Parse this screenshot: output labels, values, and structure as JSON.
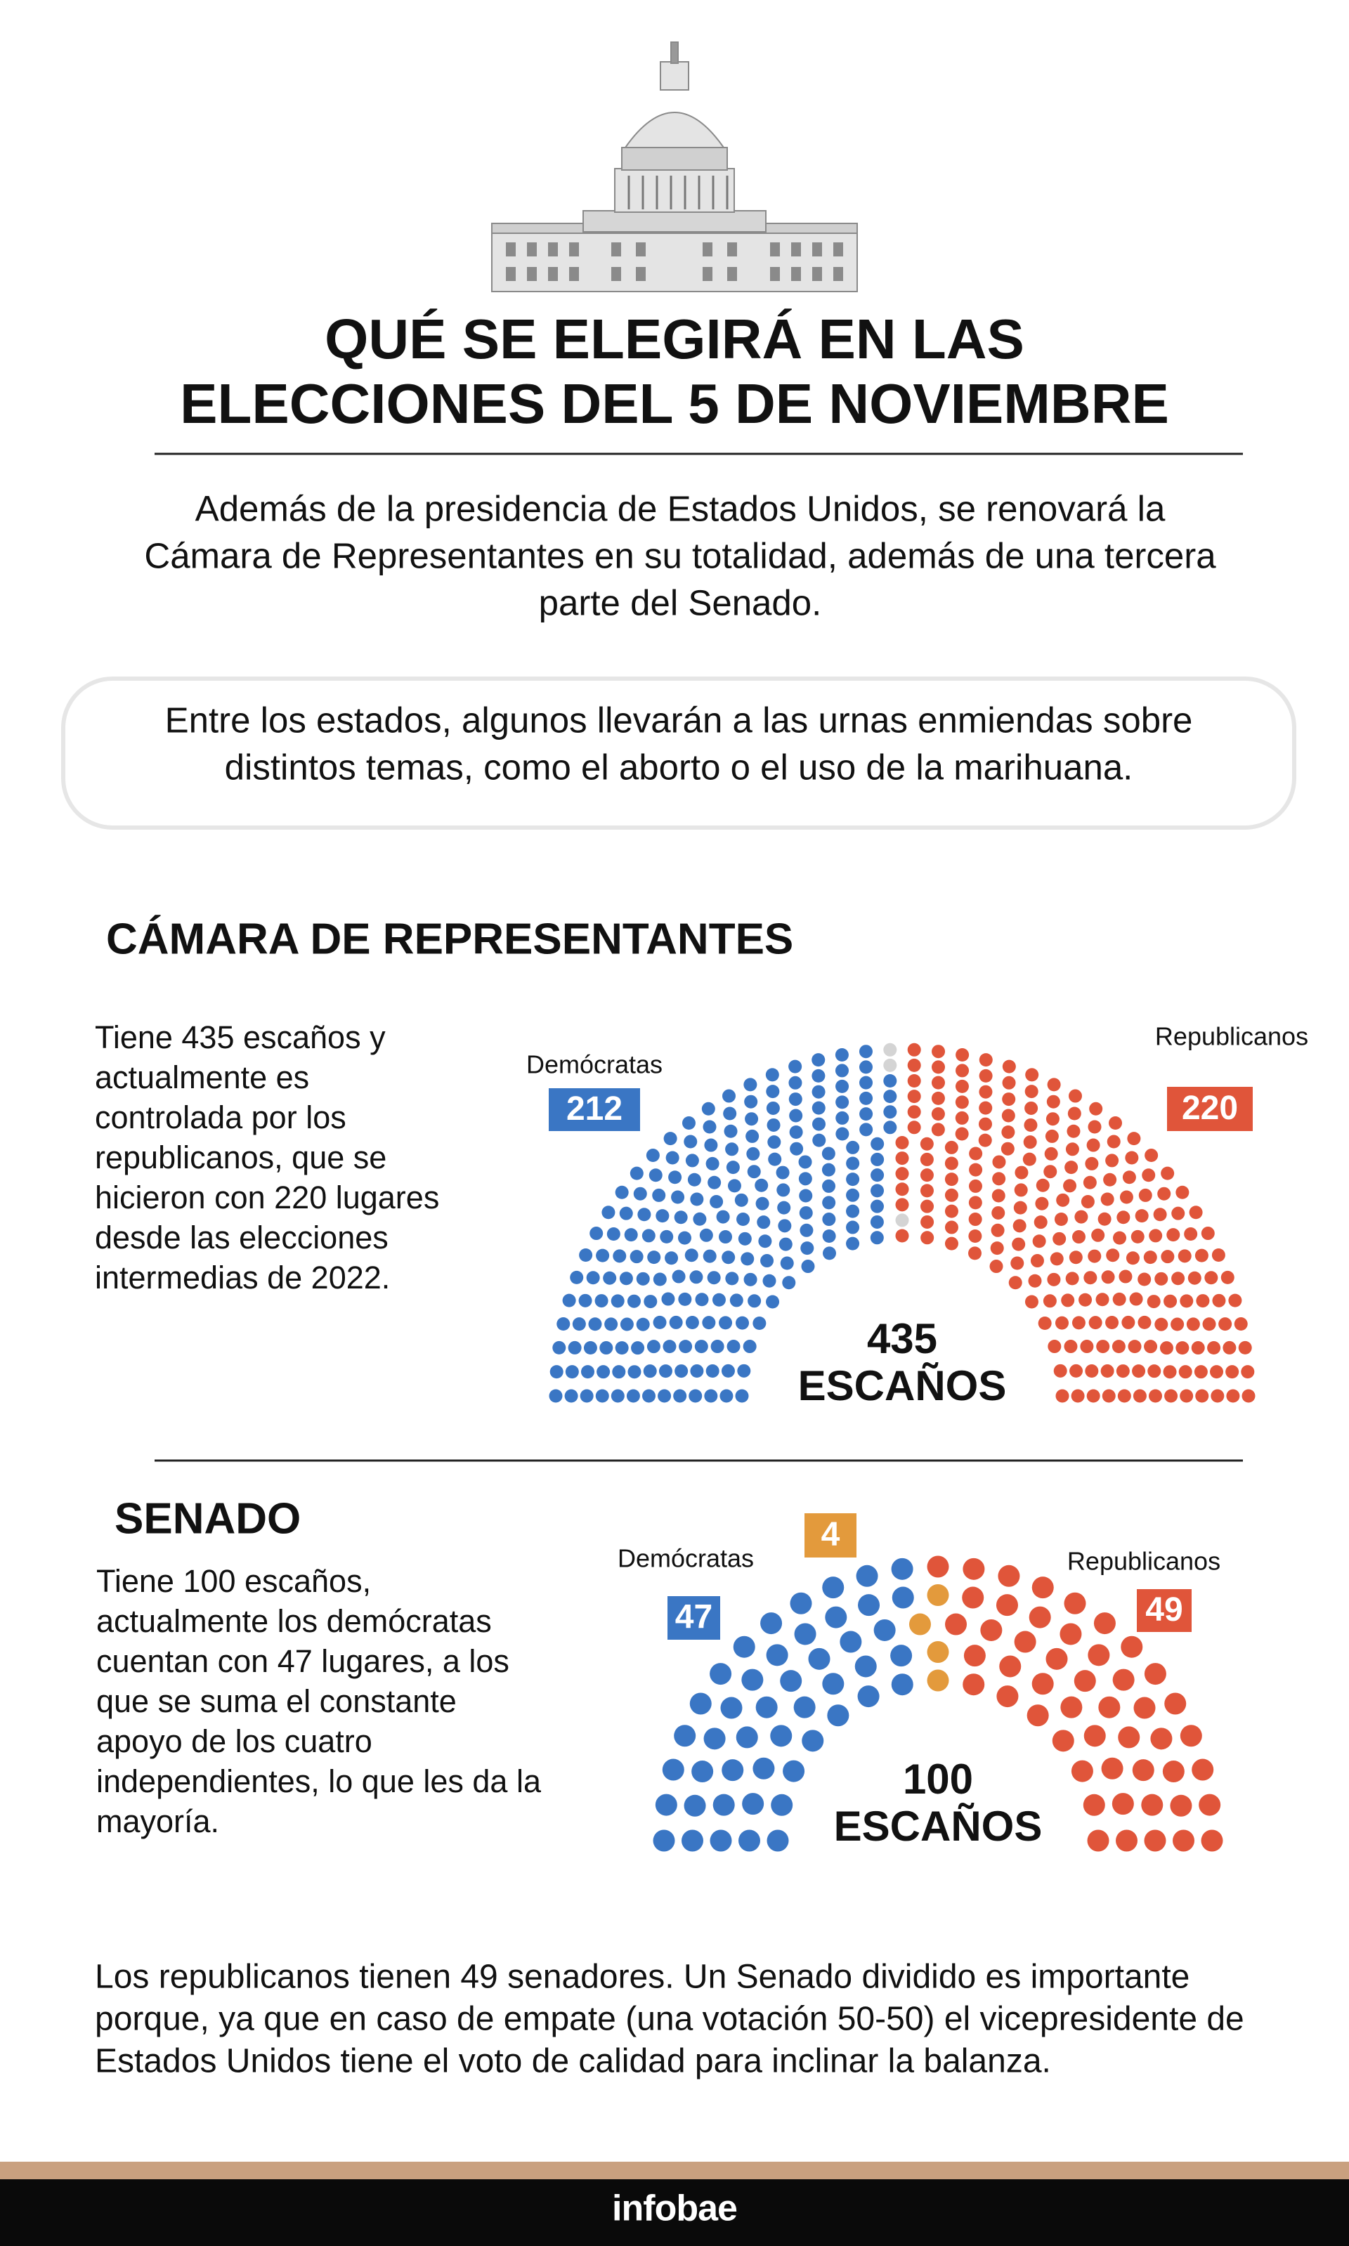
{
  "header": {
    "title_lines": [
      "QUÉ SE ELEGIRÁ EN LAS",
      "ELECCIONES DEL 5 DE NOVIEMBRE"
    ]
  },
  "intro": {
    "lines": [
      "Además de la presidencia de Estados Unidos, se renovará la",
      "Cámara de Representantes en su totalidad, además de una tercera",
      "parte del Senado."
    ]
  },
  "note": {
    "lines": [
      "Entre los estados, algunos llevarán a las urnas enmiendas sobre",
      "distintos temas, como el aborto o el uso de la marihuana."
    ]
  },
  "house": {
    "heading": "CÁMARA DE REPRESENTANTES",
    "lines": [
      "Tiene 435 escaños y",
      "actualmente es",
      "controlada por los",
      "republicanos, que se",
      "hicieron con 220 lugares",
      "desde las elecciones",
      "intermedias de 2022."
    ]
  },
  "senate": {
    "heading": "SENADO",
    "lines": [
      "Tiene 100 escaños,",
      "actualmente los demócratas",
      "cuentan con 47 lugares, a los",
      "que se suma el constante",
      "apoyo de los cuatro",
      "independientes, lo que les da la",
      "mayoría."
    ]
  },
  "closing": {
    "lines": [
      "Los republicanos tienen 49 senadores. Un Senado dividido es importante",
      "porque, ya que en caso de empate (una votación 50-50) el vicepresidente de",
      "Estados Unidos tiene el voto de calidad para inclinar la balanza."
    ]
  },
  "footer": {
    "brand": "infobae"
  },
  "chart_data": [
    {
      "type": "parliament",
      "categories": [
        "Demócratas",
        null,
        "Republicanos"
      ],
      "values": [
        212,
        3,
        220
      ],
      "colors": [
        "#3a76c4",
        "#d4d4d4",
        "#e0553a"
      ],
      "total": 435,
      "total_label": "ESCAÑOS"
    },
    {
      "type": "parliament",
      "categories": [
        "Demócratas",
        null,
        "Republicanos"
      ],
      "values": [
        47,
        4,
        49
      ],
      "colors": [
        "#3a76c4",
        "#e39a3c",
        "#e0553a"
      ],
      "total": 100,
      "total_label": "ESCAÑOS"
    }
  ]
}
